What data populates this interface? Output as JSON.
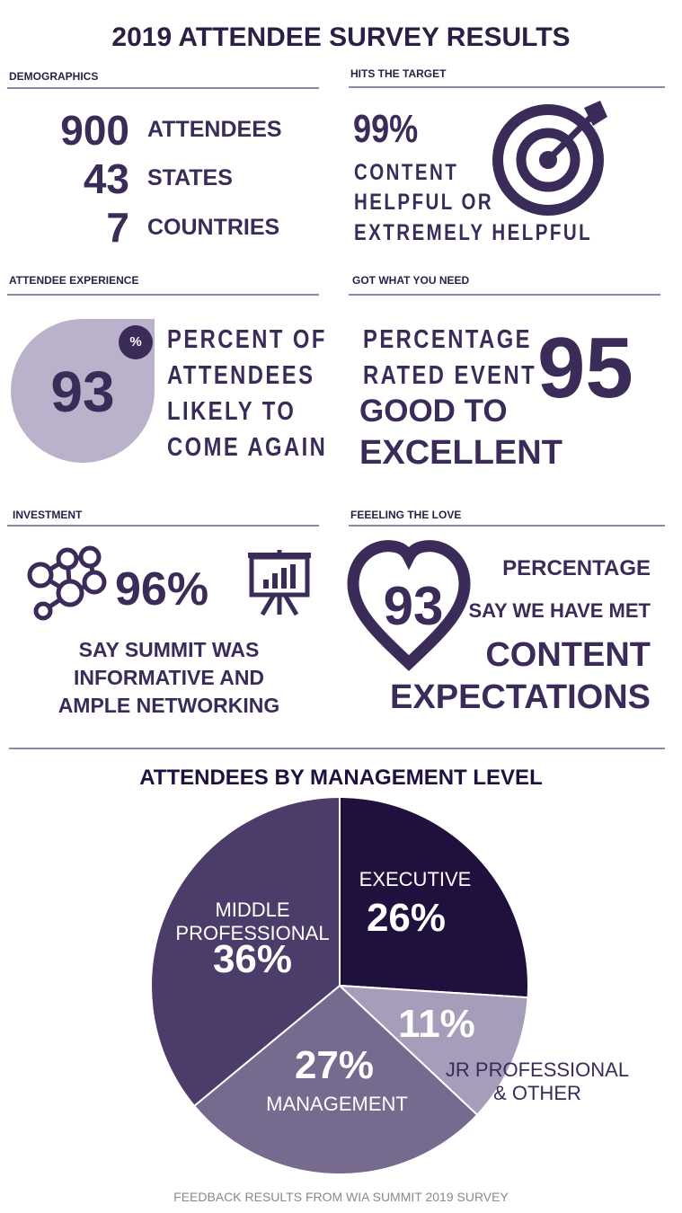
{
  "title": "2019 ATTENDEE SURVEY RESULTS",
  "demographics": {
    "heading": "DEMOGRAPHICS",
    "rows": [
      [
        "900",
        "ATTENDEES"
      ],
      [
        "43",
        "STATES"
      ],
      [
        "7",
        "COUNTRIES"
      ]
    ]
  },
  "hits_target": {
    "heading": "HITS THE TARGET",
    "stat": "99%",
    "lines": [
      "CONTENT",
      "HELPFUL OR",
      "EXTREMELY HELPFUL"
    ]
  },
  "experience": {
    "heading": "ATTENDEE EXPERIENCE",
    "stat": "93",
    "unit": "%",
    "lines": [
      "PERCENT OF",
      "ATTENDEES",
      "LIKELY TO",
      "COME AGAIN"
    ]
  },
  "got_need": {
    "heading": "GOT WHAT YOU NEED",
    "stat": "95",
    "lines": [
      "PERCENTAGE",
      "RATED EVENT"
    ],
    "emphasis": [
      "GOOD TO",
      "EXCELLENT"
    ]
  },
  "investment": {
    "heading": "INVESTMENT",
    "stat": "96%",
    "lines": [
      "SAY SUMMIT WAS",
      "INFORMATIVE AND",
      "AMPLE NETWORKING"
    ]
  },
  "feeling": {
    "heading": "FEEELING THE LOVE",
    "stat": "93",
    "lines": [
      "PERCENTAGE",
      "SAY WE HAVE MET"
    ],
    "emphasis": [
      "CONTENT",
      "EXPECTATIONS"
    ]
  },
  "chart_data": {
    "type": "pie",
    "title": "ATTENDEES BY MANAGEMENT LEVEL",
    "categories": [
      "EXECUTIVE",
      "JR PROFESSIONAL & OTHER",
      "MANAGEMENT",
      "MIDDLE PROFESSIONAL"
    ],
    "values": [
      26,
      11,
      27,
      36
    ],
    "value_labels": [
      "26%",
      "11%",
      "27%",
      "36%"
    ],
    "colors": [
      "#20103d",
      "#a59dba",
      "#766a8f",
      "#4b3c69"
    ]
  },
  "footer": "FEEDBACK RESULTS FROM WIA SUMMIT 2019 SURVEY"
}
